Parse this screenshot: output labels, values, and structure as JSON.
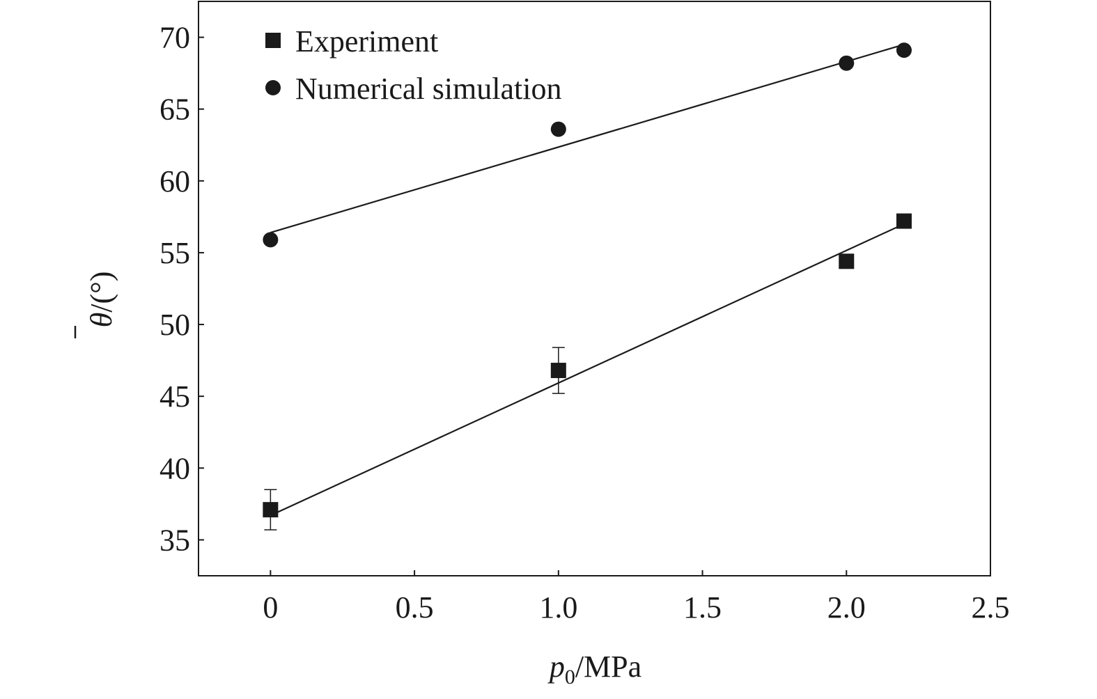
{
  "chart_data": {
    "type": "scatter",
    "xlabel": {
      "var": "p",
      "sub": "0",
      "unit": "/MPa"
    },
    "ylabel": {
      "var": "θ",
      "unit": "/(°)"
    },
    "xlim": [
      -0.25,
      2.5
    ],
    "ylim": [
      32.5,
      72.5
    ],
    "xticks": [
      0,
      0.5,
      1.0,
      1.5,
      2.0,
      2.5
    ],
    "xtick_labels": [
      "0",
      "0.5",
      "1.0",
      "1.5",
      "2.0",
      "2.5"
    ],
    "yticks": [
      35,
      40,
      45,
      50,
      55,
      60,
      65,
      70
    ],
    "ytick_labels": [
      "35",
      "40",
      "45",
      "50",
      "55",
      "60",
      "65",
      "70"
    ],
    "grid": false,
    "legend_position": "top-left",
    "series": [
      {
        "name": "Experiment",
        "marker": "square",
        "color": "#1a1a1a",
        "x": [
          0,
          1.0,
          2.0,
          2.2
        ],
        "y": [
          37.1,
          46.8,
          54.4,
          57.2
        ],
        "error": [
          1.4,
          1.6,
          null,
          null
        ],
        "fit": {
          "x": [
            0,
            2.2
          ],
          "y": [
            36.7,
            57.0
          ]
        }
      },
      {
        "name": "Numerical simulation",
        "marker": "circle",
        "color": "#1a1a1a",
        "x": [
          0,
          1.0,
          2.0,
          2.2
        ],
        "y": [
          55.9,
          63.6,
          68.2,
          69.1
        ],
        "error": [
          null,
          null,
          null,
          null
        ],
        "fit": {
          "x": [
            0,
            2.2
          ],
          "y": [
            56.4,
            69.5
          ]
        }
      }
    ]
  }
}
